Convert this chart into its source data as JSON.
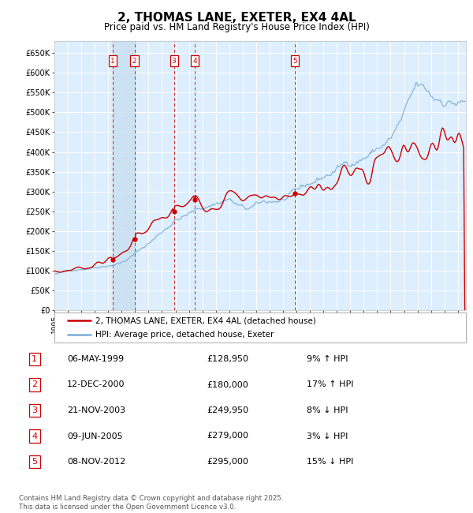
{
  "title": "2, THOMAS LANE, EXETER, EX4 4AL",
  "subtitle": "Price paid vs. HM Land Registry's House Price Index (HPI)",
  "title_fontsize": 11,
  "subtitle_fontsize": 9,
  "background_color": "#ffffff",
  "plot_background": "#ddeeff",
  "grid_color": "#ffffff",
  "ylim": [
    0,
    680000
  ],
  "yticks": [
    0,
    50000,
    100000,
    150000,
    200000,
    250000,
    300000,
    350000,
    400000,
    450000,
    500000,
    550000,
    600000,
    650000
  ],
  "ytick_labels": [
    "£0",
    "£50K",
    "£100K",
    "£150K",
    "£200K",
    "£250K",
    "£300K",
    "£350K",
    "£400K",
    "£450K",
    "£500K",
    "£550K",
    "£600K",
    "£650K"
  ],
  "hpi_color": "#7aaed6",
  "price_color": "#cc0000",
  "sale_marker_color": "#cc0000",
  "vline_color": "#cc0000",
  "shade_color": "#c8dff0",
  "transactions": [
    {
      "num": 1,
      "date_label": "06-MAY-1999",
      "date_year": 1999.35,
      "price": 128950,
      "pct": "9%",
      "dir": "↑"
    },
    {
      "num": 2,
      "date_label": "12-DEC-2000",
      "date_year": 2000.95,
      "price": 180000,
      "pct": "17%",
      "dir": "↑"
    },
    {
      "num": 3,
      "date_label": "21-NOV-2003",
      "date_year": 2003.89,
      "price": 249950,
      "pct": "8%",
      "dir": "↓"
    },
    {
      "num": 4,
      "date_label": "09-JUN-2005",
      "date_year": 2005.44,
      "price": 279000,
      "pct": "3%",
      "dir": "↓"
    },
    {
      "num": 5,
      "date_label": "08-NOV-2012",
      "date_year": 2012.86,
      "price": 295000,
      "pct": "15%",
      "dir": "↓"
    }
  ],
  "legend_line1": "2, THOMAS LANE, EXETER, EX4 4AL (detached house)",
  "legend_line2": "HPI: Average price, detached house, Exeter",
  "footer": "Contains HM Land Registry data © Crown copyright and database right 2025.\nThis data is licensed under the Open Government Licence v3.0.",
  "table_rows": [
    {
      "num": 1,
      "date": "06-MAY-1999",
      "price": "£128,950",
      "pct": "9% ↑ HPI"
    },
    {
      "num": 2,
      "date": "12-DEC-2000",
      "price": "£180,000",
      "pct": "17% ↑ HPI"
    },
    {
      "num": 3,
      "date": "21-NOV-2003",
      "price": "£249,950",
      "pct": "8% ↓ HPI"
    },
    {
      "num": 4,
      "date": "09-JUN-2005",
      "price": "£279,000",
      "pct": "3% ↓ HPI"
    },
    {
      "num": 5,
      "date": "08-NOV-2012",
      "price": "£295,000",
      "pct": "15% ↓ HPI"
    }
  ]
}
